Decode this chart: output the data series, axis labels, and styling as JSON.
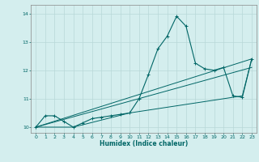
{
  "xlabel": "Humidex (Indice chaleur)",
  "bg_color": "#d4eeee",
  "grid_color": "#b8d8d8",
  "line_color": "#006666",
  "xlim": [
    -0.5,
    23.5
  ],
  "ylim": [
    9.8,
    14.3
  ],
  "yticks": [
    10,
    11,
    12,
    13,
    14
  ],
  "xticks": [
    0,
    1,
    2,
    3,
    4,
    5,
    6,
    7,
    8,
    9,
    10,
    11,
    12,
    13,
    14,
    15,
    16,
    17,
    18,
    19,
    20,
    21,
    22,
    23
  ],
  "line1_x": [
    0,
    1,
    2,
    3,
    4,
    5,
    6,
    7,
    8,
    9,
    10,
    11,
    12,
    13,
    14,
    15,
    16,
    17,
    18,
    19,
    20,
    21,
    22,
    23
  ],
  "line1_y": [
    10.0,
    10.4,
    10.4,
    10.2,
    10.0,
    10.15,
    10.3,
    10.35,
    10.4,
    10.45,
    10.5,
    11.0,
    11.85,
    12.75,
    13.2,
    13.9,
    13.55,
    12.25,
    12.05,
    12.0,
    12.1,
    11.1,
    11.05,
    12.4
  ],
  "line2_x": [
    0,
    23
  ],
  "line2_y": [
    10.0,
    12.1
  ],
  "line3_x": [
    0,
    23
  ],
  "line3_y": [
    10.0,
    12.4
  ],
  "line4_x": [
    0,
    4,
    10,
    22,
    23
  ],
  "line4_y": [
    10.0,
    10.0,
    10.5,
    11.1,
    12.4
  ]
}
